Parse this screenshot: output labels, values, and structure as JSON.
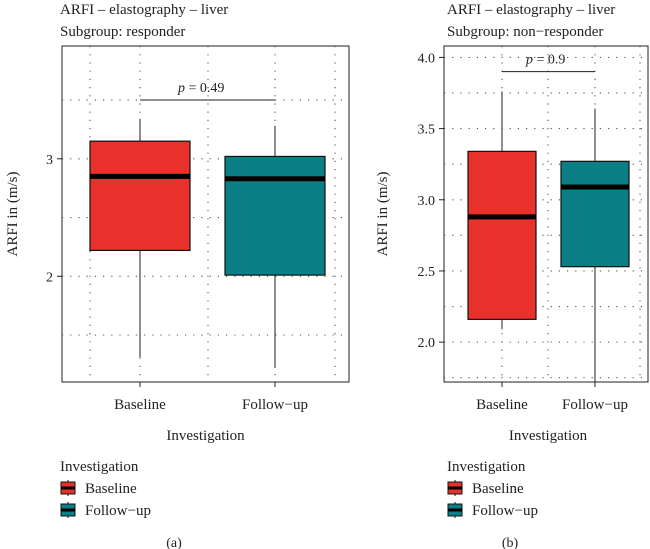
{
  "chart_data": [
    {
      "type": "box",
      "title": "ARFI – elastography – liver",
      "subtitle": "Subgroup: responder",
      "xlabel": "Investigation",
      "ylabel": "ARFI in (m/s)",
      "ylim": [
        1.1,
        3.96
      ],
      "yticks": [
        2,
        3
      ],
      "ytick_labels": [
        "2",
        "3"
      ],
      "ygrid": [
        1.5,
        2,
        2.5,
        3,
        3.5
      ],
      "grid": "dotted",
      "categories": [
        "Baseline",
        "Follow−up"
      ],
      "boxes": [
        {
          "category": "Baseline",
          "min": 1.31,
          "q1": 2.22,
          "median": 2.85,
          "q3": 3.15,
          "max": 3.34
        },
        {
          "category": "Follow−up",
          "min": 1.22,
          "q1": 2.01,
          "median": 2.83,
          "q3": 3.02,
          "max": 3.28
        }
      ],
      "annotation": {
        "p_label": "p",
        "value_text": " = 0.49",
        "y": 3.5
      },
      "legend": {
        "title": "Investigation",
        "placement": "bottom-left"
      },
      "caption": "(a)"
    },
    {
      "type": "box",
      "title": "ARFI – elastography – liver",
      "subtitle": "Subgroup: non−responder",
      "xlabel": "Investigation",
      "ylabel": "ARFI in (m/s)",
      "ylim": [
        1.72,
        4.08
      ],
      "yticks": [
        2.0,
        2.5,
        3.0,
        3.5,
        4.0
      ],
      "ytick_labels": [
        "2.0",
        "2.5",
        "3.0",
        "3.5",
        "4.0"
      ],
      "ygrid": [
        1.75,
        2.0,
        2.25,
        2.5,
        2.75,
        3.0,
        3.25,
        3.5,
        3.75,
        4.0
      ],
      "grid": "dotted",
      "categories": [
        "Baseline",
        "Follow−up"
      ],
      "boxes": [
        {
          "category": "Baseline",
          "min": 2.09,
          "q1": 2.16,
          "median": 2.88,
          "q3": 3.34,
          "max": 3.76
        },
        {
          "category": "Follow−up",
          "min": 1.72,
          "q1": 2.53,
          "median": 3.09,
          "q3": 3.27,
          "max": 3.64
        }
      ],
      "annotation": {
        "p_label": "p",
        "value_text": " = 0.9",
        "y": 3.9
      },
      "legend": {
        "title": "Investigation",
        "placement": "bottom-left"
      },
      "caption": "(b)"
    }
  ],
  "legend_items": [
    {
      "label": "Baseline",
      "color": "#e8312a"
    },
    {
      "label": "Follow−up",
      "color": "#0a7f86"
    }
  ]
}
